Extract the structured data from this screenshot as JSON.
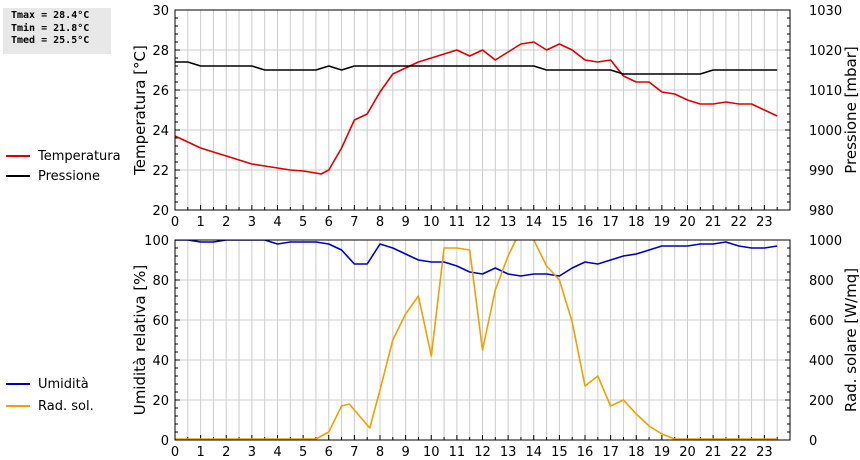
{
  "stats": {
    "tmax": "Tmax = 28.4°C",
    "tmin": "Tmin = 21.8°C",
    "tmed": "Tmed = 25.5°C"
  },
  "colors": {
    "temperature": "#dd0000",
    "pressure": "#000000",
    "humidity": "#0000bb",
    "radiation": "#f0a000",
    "grid": "#cccccc"
  },
  "chart_data": [
    {
      "type": "line",
      "xlim": [
        0,
        24
      ],
      "x_ticks": [
        "0",
        "1",
        "2",
        "3",
        "4",
        "5",
        "6",
        "7",
        "8",
        "9",
        "10",
        "11",
        "12",
        "13",
        "14",
        "15",
        "16",
        "17",
        "18",
        "19",
        "20",
        "21",
        "22",
        "23"
      ],
      "grid": true,
      "ylabel_left": "Temperatura [°C]",
      "ylim_left": [
        20,
        30
      ],
      "yticks_left": [
        "20",
        "22",
        "24",
        "26",
        "28",
        "30"
      ],
      "ylabel_right": "Pressione [mbar]",
      "ylim_right": [
        980,
        1030
      ],
      "yticks_right": [
        "980",
        "990",
        "1000",
        "1010",
        "1020",
        "1030"
      ],
      "legend_position": "left",
      "series": [
        {
          "name": "Temperatura",
          "axis": "left",
          "color": "#dd0000",
          "x": [
            0,
            0.5,
            1,
            1.5,
            2,
            2.5,
            3,
            3.5,
            4,
            4.5,
            5,
            5.5,
            5.7,
            6,
            6.5,
            7,
            7.5,
            8,
            8.5,
            9,
            9.5,
            10,
            10.5,
            11,
            11.5,
            12,
            12.5,
            13,
            13.5,
            14,
            14.5,
            15,
            15.5,
            16,
            16.5,
            17,
            17.5,
            18,
            18.5,
            19,
            19.5,
            20,
            20.5,
            21,
            21.5,
            22,
            22.5,
            23,
            23.5
          ],
          "values": [
            23.7,
            23.4,
            23.1,
            22.9,
            22.7,
            22.5,
            22.3,
            22.2,
            22.1,
            22.0,
            21.95,
            21.85,
            21.8,
            22.0,
            23.1,
            24.5,
            24.8,
            25.9,
            26.8,
            27.1,
            27.4,
            27.6,
            27.8,
            28.0,
            27.7,
            28.0,
            27.5,
            27.9,
            28.3,
            28.4,
            28.0,
            28.3,
            28.0,
            27.5,
            27.4,
            27.5,
            26.7,
            26.4,
            26.4,
            25.9,
            25.8,
            25.5,
            25.3,
            25.3,
            25.4,
            25.3,
            25.3,
            25.0,
            24.7
          ]
        },
        {
          "name": "Pressione",
          "axis": "right",
          "color": "#000000",
          "x": [
            0,
            0.5,
            1,
            1.5,
            2,
            2.5,
            3,
            3.5,
            4,
            4.5,
            5,
            5.5,
            6,
            6.5,
            7,
            7.5,
            8,
            8.5,
            9,
            9.5,
            10,
            10.5,
            11,
            11.5,
            12,
            12.5,
            13,
            13.5,
            14,
            14.5,
            15,
            15.5,
            16,
            16.5,
            17,
            17.5,
            18,
            18.5,
            19,
            19.5,
            20,
            20.5,
            21,
            21.5,
            22,
            22.5,
            23,
            23.5
          ],
          "values": [
            1017,
            1017,
            1016,
            1016,
            1016,
            1016,
            1016,
            1015,
            1015,
            1015,
            1015,
            1015,
            1016,
            1015,
            1016,
            1016,
            1016,
            1016,
            1016,
            1016,
            1016,
            1016,
            1016,
            1016,
            1016,
            1016,
            1016,
            1016,
            1016,
            1015,
            1015,
            1015,
            1015,
            1015,
            1015,
            1014,
            1014,
            1014,
            1014,
            1014,
            1014,
            1014,
            1015,
            1015,
            1015,
            1015,
            1015,
            1015
          ]
        }
      ]
    },
    {
      "type": "line",
      "xlim": [
        0,
        24
      ],
      "x_ticks": [
        "0",
        "1",
        "2",
        "3",
        "4",
        "5",
        "6",
        "7",
        "8",
        "9",
        "10",
        "11",
        "12",
        "13",
        "14",
        "15",
        "16",
        "17",
        "18",
        "19",
        "20",
        "21",
        "22",
        "23"
      ],
      "grid": true,
      "ylabel_left": "Umidità relativa [%]",
      "ylim_left": [
        0,
        100
      ],
      "yticks_left": [
        "0",
        "20",
        "40",
        "60",
        "80",
        "100"
      ],
      "ylabel_right": "Rad. solare [W/mq]",
      "ylim_right": [
        0,
        1000
      ],
      "yticks_right": [
        "0",
        "200",
        "400",
        "600",
        "800",
        "1000"
      ],
      "legend_position": "left",
      "series": [
        {
          "name": "Umidità",
          "axis": "left",
          "color": "#0000bb",
          "x": [
            0,
            0.5,
            1,
            1.5,
            2,
            2.5,
            3,
            3.5,
            4,
            4.5,
            5,
            5.5,
            6,
            6.5,
            7,
            7.5,
            8,
            8.5,
            9,
            9.5,
            10,
            10.5,
            11,
            11.5,
            12,
            12.5,
            13,
            13.5,
            14,
            14.5,
            15,
            15.5,
            16,
            16.5,
            17,
            17.5,
            18,
            18.5,
            19,
            19.5,
            20,
            20.5,
            21,
            21.5,
            22,
            22.5,
            23,
            23.5
          ],
          "values": [
            100,
            100,
            99,
            99,
            100,
            100,
            100,
            100,
            98,
            99,
            99,
            99,
            98,
            95,
            88,
            88,
            98,
            96,
            93,
            90,
            89,
            89,
            87,
            84,
            83,
            86,
            83,
            82,
            83,
            83,
            82,
            86,
            89,
            88,
            90,
            92,
            93,
            95,
            97,
            97,
            97,
            98,
            98,
            99,
            97,
            96,
            96,
            97
          ]
        },
        {
          "name": "Rad. sol.",
          "axis": "right",
          "color": "#f0a000",
          "x": [
            0,
            0.5,
            1,
            1.5,
            2,
            2.5,
            3,
            3.5,
            4,
            4.5,
            5,
            5.5,
            6,
            6.5,
            6.8,
            7.2,
            7.6,
            8,
            8.5,
            9,
            9.5,
            10,
            10.5,
            11,
            11.5,
            12,
            12.5,
            13,
            13.3,
            13.5,
            14,
            14.5,
            15,
            15.5,
            16,
            16.5,
            17,
            17.5,
            18,
            18.5,
            19,
            19.5,
            20,
            20.5,
            21,
            21.5,
            22,
            22.5,
            23,
            23.5
          ],
          "values": [
            5,
            5,
            5,
            5,
            5,
            5,
            5,
            5,
            5,
            5,
            5,
            5,
            40,
            170,
            180,
            120,
            60,
            250,
            500,
            630,
            720,
            420,
            960,
            960,
            950,
            450,
            750,
            920,
            1000,
            1040,
            1000,
            870,
            800,
            590,
            270,
            320,
            170,
            200,
            130,
            70,
            30,
            5,
            5,
            5,
            5,
            5,
            5,
            5,
            5,
            5
          ]
        }
      ]
    }
  ]
}
